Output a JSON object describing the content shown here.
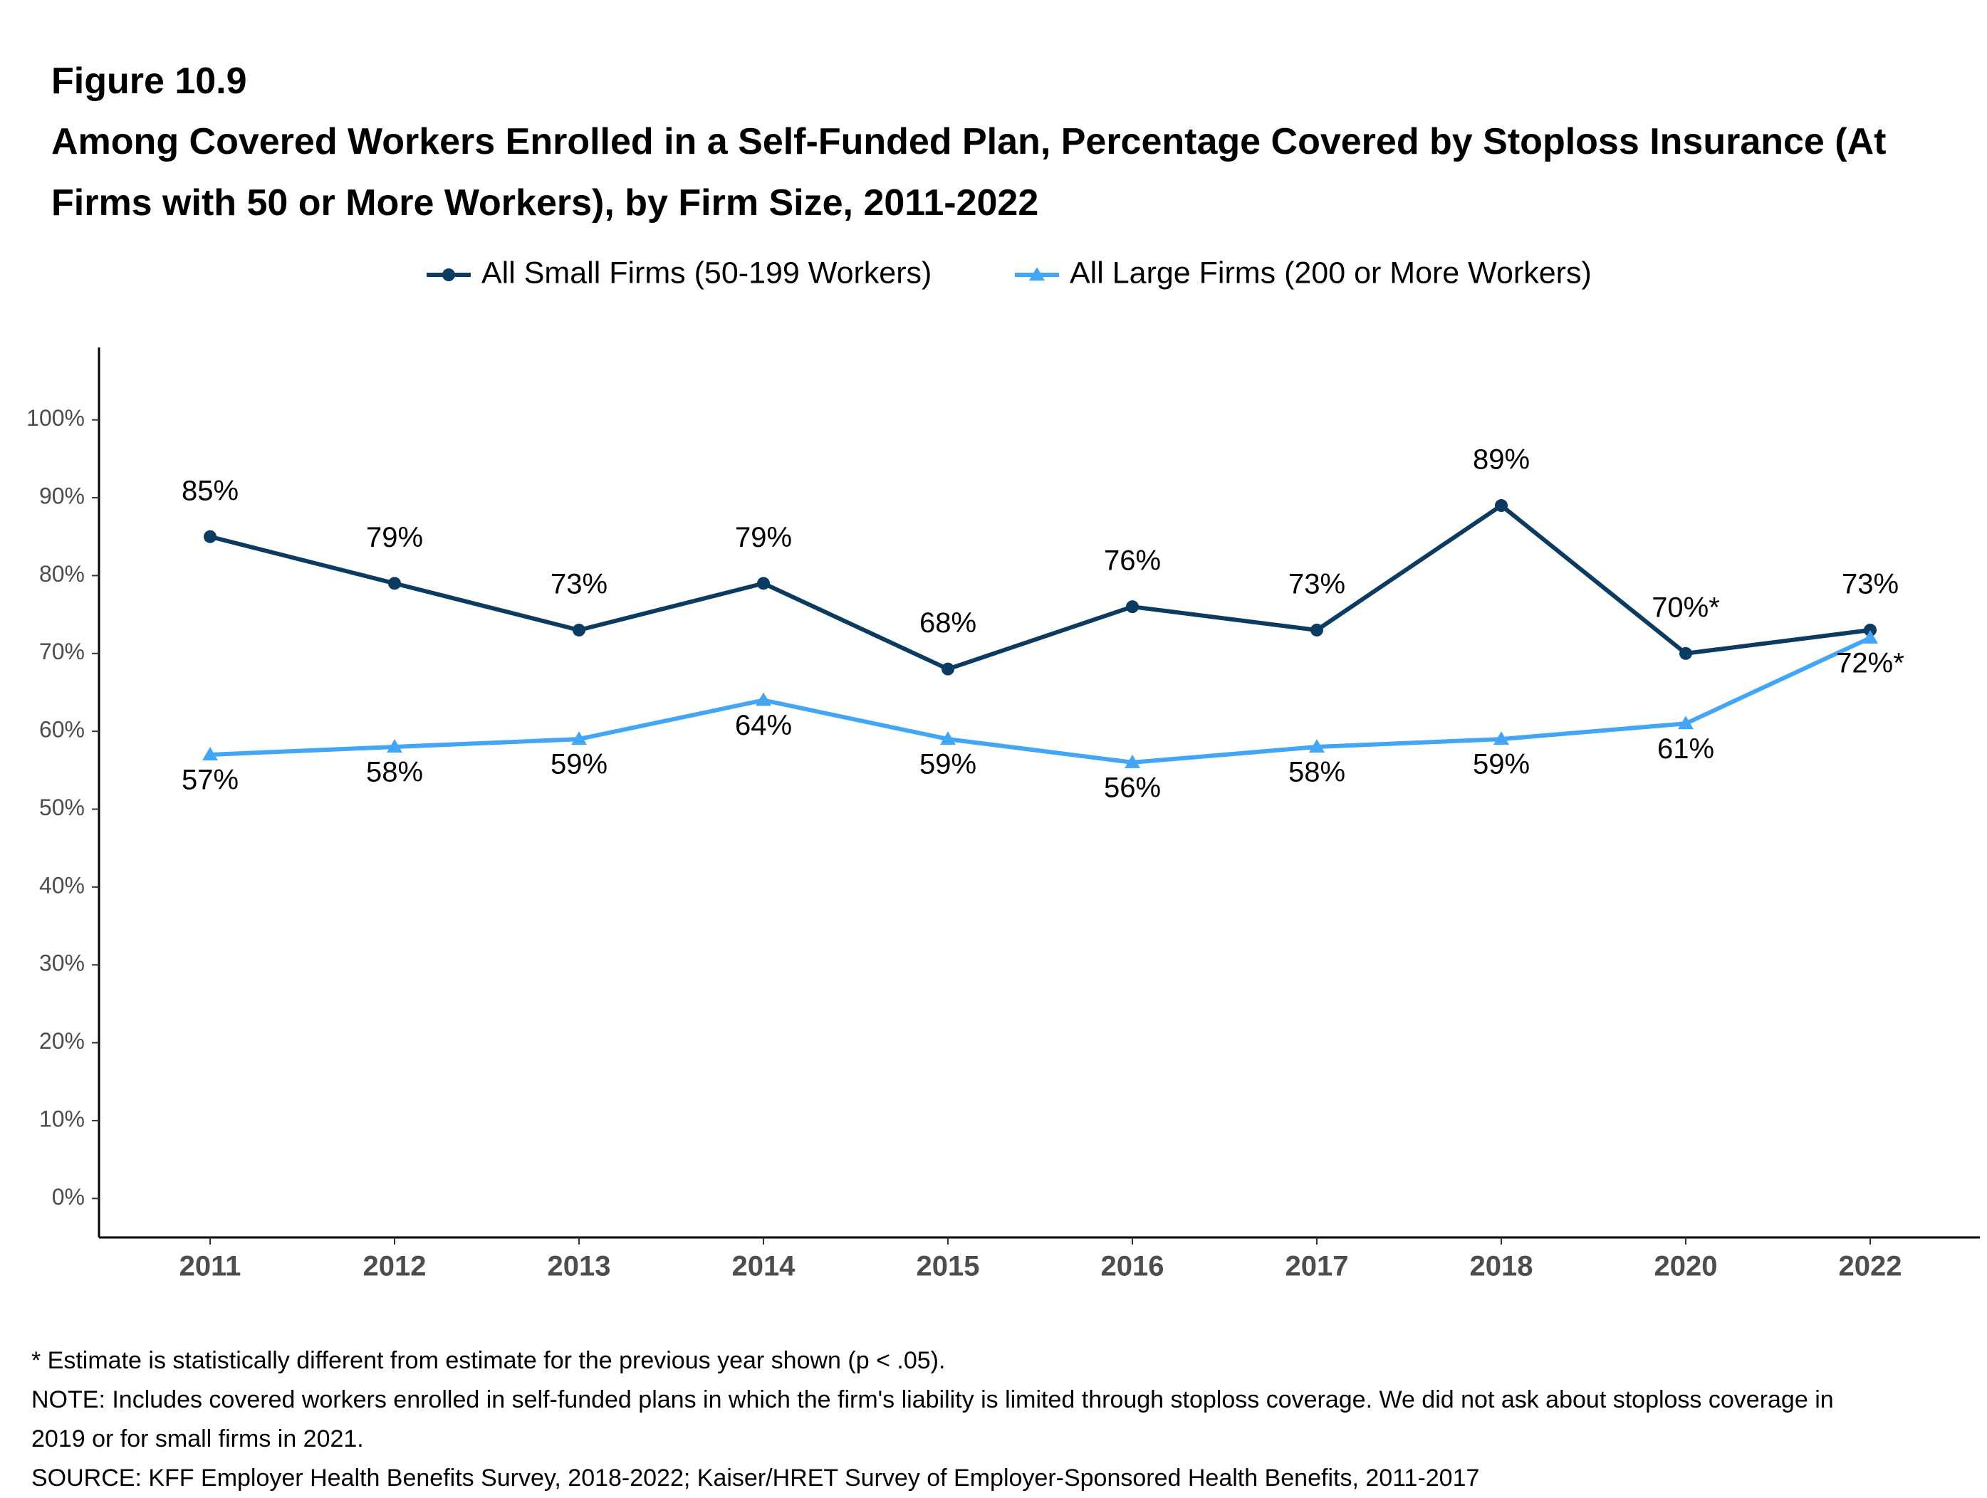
{
  "figure_label": "Figure 10.9",
  "chart_data": {
    "type": "line",
    "title": "Among Covered Workers Enrolled in a Self-Funded Plan, Percentage Covered by Stoploss Insurance (At Firms with 50 or More Workers), by Firm Size, 2011-2022",
    "categories": [
      "2011",
      "2012",
      "2013",
      "2014",
      "2015",
      "2016",
      "2017",
      "2018",
      "2020",
      "2022"
    ],
    "series": [
      {
        "name": "All Small Firms (50-199 Workers)",
        "color": "#0b3b60",
        "marker": "circle",
        "values": [
          85,
          79,
          73,
          79,
          68,
          76,
          73,
          89,
          70,
          73
        ],
        "value_labels": [
          "85%",
          "79%",
          "73%",
          "79%",
          "68%",
          "76%",
          "73%",
          "89%",
          "70%*",
          "73%"
        ]
      },
      {
        "name": "All Large Firms (200 or More Workers)",
        "color": "#42a5f5",
        "marker": "triangle",
        "values": [
          57,
          58,
          59,
          64,
          59,
          56,
          58,
          59,
          61,
          72
        ],
        "value_labels": [
          "57%",
          "58%",
          "59%",
          "64%",
          "59%",
          "56%",
          "58%",
          "59%",
          "61%",
          "72%*"
        ]
      }
    ],
    "ylim": [
      -5,
      109.3
    ],
    "yticks": [
      {
        "value": 0,
        "label": "0%"
      },
      {
        "value": 10,
        "label": "10%"
      },
      {
        "value": 20,
        "label": "20%"
      },
      {
        "value": 30,
        "label": "30%"
      },
      {
        "value": 40,
        "label": "40%"
      },
      {
        "value": 50,
        "label": "50%"
      },
      {
        "value": 60,
        "label": "60%"
      },
      {
        "value": 70,
        "label": "70%"
      },
      {
        "value": 80,
        "label": "80%"
      },
      {
        "value": 90,
        "label": "90%"
      },
      {
        "value": 100,
        "label": "100%"
      }
    ],
    "grid": false,
    "legend": "top"
  },
  "notes": [
    "* Estimate is statistically different from estimate for the previous year shown (p < .05).",
    "NOTE: Includes covered workers enrolled in self-funded plans in which the firm's liability is limited through stoploss coverage. We did not ask about stoploss coverage in 2019 or for small firms in 2021.",
    "SOURCE: KFF Employer Health Benefits Survey, 2018-2022; Kaiser/HRET Survey of Employer-Sponsored Health Benefits, 2011-2017"
  ]
}
